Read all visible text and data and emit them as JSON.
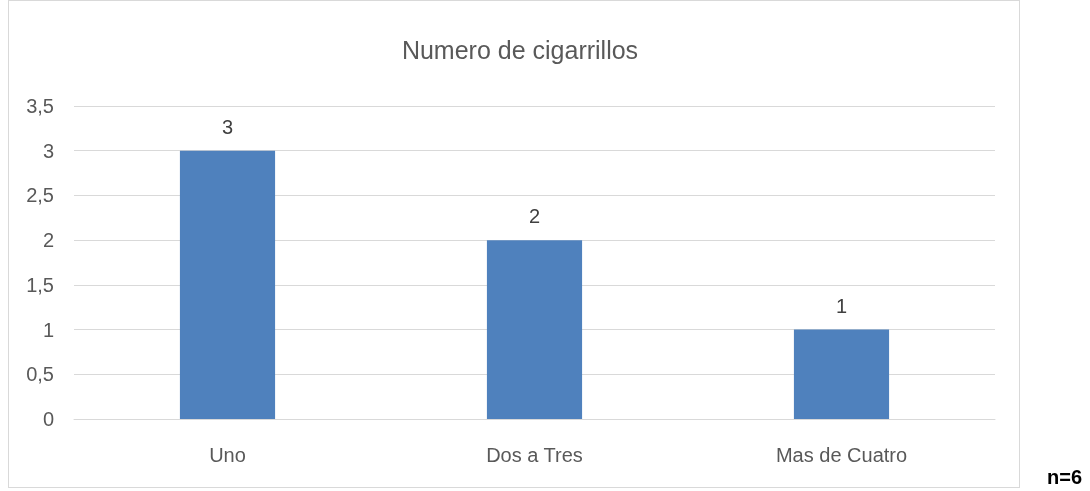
{
  "chart_data": {
    "type": "bar",
    "title": "Numero de cigarrillos",
    "categories": [
      "Uno",
      "Dos a Tres",
      "Mas de Cuatro"
    ],
    "values": [
      3,
      2,
      1
    ],
    "color": "#4f81bd",
    "ylim": [
      0,
      3.5
    ],
    "yticks": [
      0,
      {
        "value": 0.5,
        "label": "0,5"
      },
      1,
      {
        "value": 1.5,
        "label": "1,5"
      },
      2,
      {
        "value": 2.5,
        "label": "2,5"
      },
      3,
      {
        "value": 3.5,
        "label": "3,5"
      }
    ],
    "grid": "y",
    "data_labels": true,
    "annotations": [
      "n=6"
    ]
  }
}
